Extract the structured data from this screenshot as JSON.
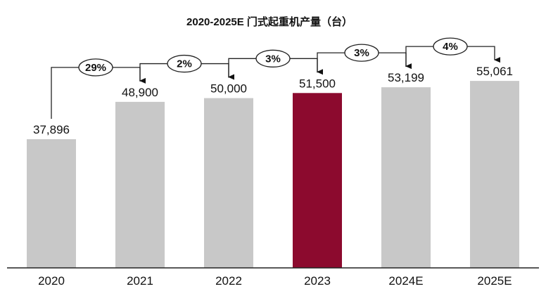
{
  "chart_data": {
    "type": "bar",
    "title": "2020-2025E 门式起重机产量（台）",
    "categories": [
      "2020",
      "2021",
      "2022",
      "2023",
      "2024E",
      "2025E"
    ],
    "values": [
      37896,
      48900,
      50000,
      51500,
      53199,
      55061
    ],
    "value_labels": [
      "37,896",
      "48,900",
      "50,000",
      "51,500",
      "53,199",
      "55,061"
    ],
    "growth_labels": [
      "29%",
      "2%",
      "3%",
      "3%",
      "4%"
    ],
    "highlight_index": 3,
    "ylim": [
      0,
      60000
    ],
    "grid": false,
    "legend": "none",
    "colors": {
      "bar": "#c8c8c8",
      "highlight": "#8c0a2e",
      "text": "#111111",
      "axis": "#222222"
    }
  }
}
